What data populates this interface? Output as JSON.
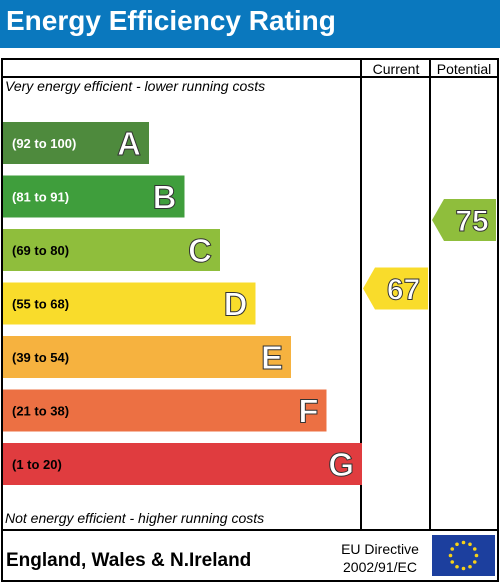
{
  "header": {
    "title": "Energy Efficiency Rating",
    "color": "#0a78be"
  },
  "columns": {
    "current": "Current",
    "potential": "Potential"
  },
  "top_caption": "Very energy efficient - lower running costs",
  "bottom_caption": "Not energy efficient - higher running costs",
  "footer": {
    "region": "England, Wales & N.Ireland",
    "directive_line1": "EU Directive",
    "directive_line2": "2002/91/EC",
    "flag_icon": "eu-flag-icon"
  },
  "chart_data": {
    "type": "bar",
    "categories": [
      "A",
      "B",
      "C",
      "D",
      "E",
      "F",
      "G"
    ],
    "ranges": [
      "(92 to 100)",
      "(81 to 91)",
      "(69 to 80)",
      "(55 to 68)",
      "(39 to 54)",
      "(21 to 38)",
      "(1 to 20)"
    ],
    "colors": [
      "#4e8a3d",
      "#3f9e3c",
      "#8fbe3c",
      "#f9dc2b",
      "#f6b23f",
      "#ec7043",
      "#e03c3f"
    ],
    "current": {
      "value": 67,
      "band": "D",
      "color": "#f9dc2b"
    },
    "potential": {
      "value": 75,
      "band": "C",
      "color": "#8fbe3c"
    }
  }
}
